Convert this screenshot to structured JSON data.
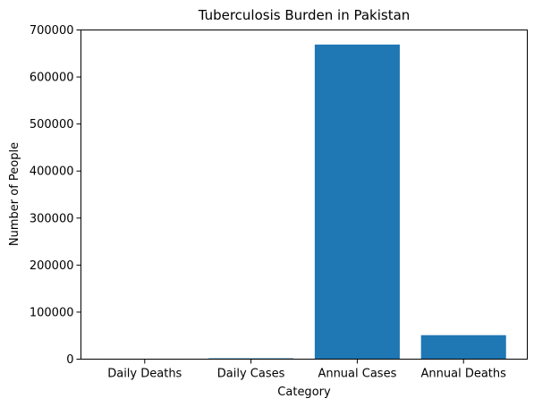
{
  "chart_data": {
    "type": "bar",
    "title": "Tuberculosis Burden in Pakistan",
    "xlabel": "Category",
    "ylabel": "Number of People",
    "categories": [
      "Daily Deaths",
      "Daily Cases",
      "Annual Cases",
      "Annual Deaths"
    ],
    "values": [
      133,
      1830,
      669000,
      51000
    ],
    "ylim": [
      0,
      700000
    ],
    "yticks": [
      0,
      100000,
      200000,
      300000,
      400000,
      500000,
      600000,
      700000
    ],
    "ytick_labels": [
      "0",
      "100000",
      "200000",
      "300000",
      "400000",
      "500000",
      "600000",
      "700000"
    ],
    "bar_color": "#1f77b4",
    "grid": false,
    "legend": false
  }
}
